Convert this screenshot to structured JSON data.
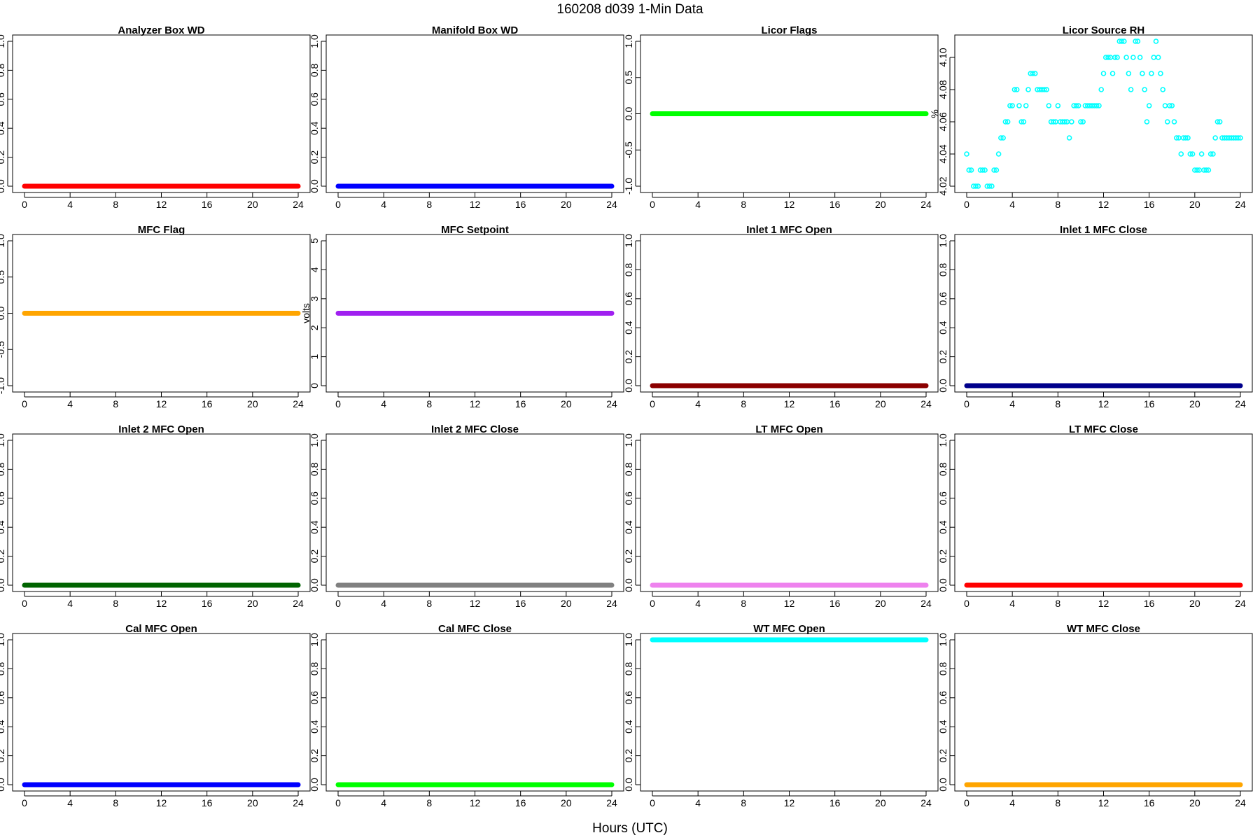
{
  "page": {
    "title": "160208   d039   1-Min Data",
    "xlabel": "Hours (UTC)"
  },
  "chart_data": [
    {
      "type": "scatter",
      "title": "Analyzer Box WD",
      "ylabel": "",
      "xlim": [
        0,
        24
      ],
      "ylim": [
        0,
        1
      ],
      "xticks": [
        0,
        4,
        8,
        12,
        16,
        20,
        24
      ],
      "yticks": [
        "0.0",
        "0.2",
        "0.4",
        "0.6",
        "0.8",
        "1.0"
      ],
      "color": "#ff0000",
      "style": "constant",
      "value": 0
    },
    {
      "type": "scatter",
      "title": "Manifold Box WD",
      "ylabel": "",
      "xlim": [
        0,
        24
      ],
      "ylim": [
        0,
        1
      ],
      "xticks": [
        0,
        4,
        8,
        12,
        16,
        20,
        24
      ],
      "yticks": [
        "0.0",
        "0.2",
        "0.4",
        "0.6",
        "0.8",
        "1.0"
      ],
      "color": "#0000ff",
      "style": "constant",
      "value": 0
    },
    {
      "type": "scatter",
      "title": "Licor Flags",
      "ylabel": "",
      "xlim": [
        0,
        24
      ],
      "ylim": [
        -1,
        1
      ],
      "xticks": [
        0,
        4,
        8,
        12,
        16,
        20,
        24
      ],
      "yticks": [
        "-1.0",
        "-0.5",
        "0.0",
        "0.5",
        "1.0"
      ],
      "color": "#00ff00",
      "style": "constant",
      "value": 0
    },
    {
      "type": "scatter",
      "title": "Licor Source RH",
      "ylabel": "%",
      "xlim": [
        0,
        24
      ],
      "ylim": [
        4.02,
        4.11
      ],
      "xticks": [
        0,
        4,
        8,
        12,
        16,
        20,
        24
      ],
      "yticks": [
        "4.02",
        "4.04",
        "4.06",
        "4.08",
        "4.10"
      ],
      "color": "#00ffff",
      "style": "points",
      "points": [
        [
          0.0,
          4.04
        ],
        [
          0.2,
          4.03
        ],
        [
          0.4,
          4.03
        ],
        [
          0.6,
          4.02
        ],
        [
          0.8,
          4.02
        ],
        [
          1.0,
          4.02
        ],
        [
          1.2,
          4.03
        ],
        [
          1.4,
          4.03
        ],
        [
          1.6,
          4.03
        ],
        [
          1.8,
          4.02
        ],
        [
          2.0,
          4.02
        ],
        [
          2.2,
          4.02
        ],
        [
          2.4,
          4.03
        ],
        [
          2.6,
          4.03
        ],
        [
          2.8,
          4.04
        ],
        [
          3.0,
          4.05
        ],
        [
          3.2,
          4.05
        ],
        [
          3.4,
          4.06
        ],
        [
          3.6,
          4.06
        ],
        [
          3.8,
          4.07
        ],
        [
          4.0,
          4.07
        ],
        [
          4.2,
          4.08
        ],
        [
          4.4,
          4.08
        ],
        [
          4.6,
          4.07
        ],
        [
          4.8,
          4.06
        ],
        [
          5.0,
          4.06
        ],
        [
          5.2,
          4.07
        ],
        [
          5.4,
          4.08
        ],
        [
          5.6,
          4.09
        ],
        [
          5.8,
          4.09
        ],
        [
          6.0,
          4.09
        ],
        [
          6.2,
          4.08
        ],
        [
          6.4,
          4.08
        ],
        [
          6.6,
          4.08
        ],
        [
          6.8,
          4.08
        ],
        [
          7.0,
          4.08
        ],
        [
          7.2,
          4.07
        ],
        [
          7.4,
          4.06
        ],
        [
          7.6,
          4.06
        ],
        [
          7.8,
          4.06
        ],
        [
          8.0,
          4.07
        ],
        [
          8.2,
          4.06
        ],
        [
          8.4,
          4.06
        ],
        [
          8.6,
          4.06
        ],
        [
          8.8,
          4.06
        ],
        [
          9.0,
          4.05
        ],
        [
          9.2,
          4.06
        ],
        [
          9.4,
          4.07
        ],
        [
          9.6,
          4.07
        ],
        [
          9.8,
          4.07
        ],
        [
          10.0,
          4.06
        ],
        [
          10.2,
          4.06
        ],
        [
          10.4,
          4.07
        ],
        [
          10.6,
          4.07
        ],
        [
          10.8,
          4.07
        ],
        [
          11.0,
          4.07
        ],
        [
          11.2,
          4.07
        ],
        [
          11.4,
          4.07
        ],
        [
          11.6,
          4.07
        ],
        [
          11.8,
          4.08
        ],
        [
          12.0,
          4.09
        ],
        [
          12.2,
          4.1
        ],
        [
          12.4,
          4.1
        ],
        [
          12.6,
          4.1
        ],
        [
          12.8,
          4.09
        ],
        [
          13.0,
          4.1
        ],
        [
          13.2,
          4.1
        ],
        [
          13.4,
          4.11
        ],
        [
          13.6,
          4.11
        ],
        [
          13.8,
          4.11
        ],
        [
          14.0,
          4.1
        ],
        [
          14.2,
          4.09
        ],
        [
          14.4,
          4.08
        ],
        [
          14.6,
          4.1
        ],
        [
          14.8,
          4.11
        ],
        [
          15.0,
          4.11
        ],
        [
          15.2,
          4.1
        ],
        [
          15.4,
          4.09
        ],
        [
          15.6,
          4.08
        ],
        [
          15.8,
          4.06
        ],
        [
          16.0,
          4.07
        ],
        [
          16.2,
          4.09
        ],
        [
          16.4,
          4.1
        ],
        [
          16.6,
          4.11
        ],
        [
          16.8,
          4.1
        ],
        [
          17.0,
          4.09
        ],
        [
          17.2,
          4.08
        ],
        [
          17.4,
          4.07
        ],
        [
          17.6,
          4.06
        ],
        [
          17.8,
          4.07
        ],
        [
          18.0,
          4.07
        ],
        [
          18.2,
          4.06
        ],
        [
          18.4,
          4.05
        ],
        [
          18.6,
          4.05
        ],
        [
          18.8,
          4.04
        ],
        [
          19.0,
          4.05
        ],
        [
          19.2,
          4.05
        ],
        [
          19.4,
          4.05
        ],
        [
          19.6,
          4.04
        ],
        [
          19.8,
          4.04
        ],
        [
          20.0,
          4.03
        ],
        [
          20.2,
          4.03
        ],
        [
          20.4,
          4.03
        ],
        [
          20.6,
          4.04
        ],
        [
          20.8,
          4.03
        ],
        [
          21.0,
          4.03
        ],
        [
          21.2,
          4.03
        ],
        [
          21.4,
          4.04
        ],
        [
          21.6,
          4.04
        ],
        [
          21.8,
          4.05
        ],
        [
          22.0,
          4.06
        ],
        [
          22.2,
          4.06
        ],
        [
          22.4,
          4.05
        ],
        [
          22.6,
          4.05
        ],
        [
          22.8,
          4.05
        ],
        [
          23.0,
          4.05
        ],
        [
          23.2,
          4.05
        ],
        [
          23.4,
          4.05
        ],
        [
          23.6,
          4.05
        ],
        [
          23.8,
          4.05
        ],
        [
          24.0,
          4.05
        ]
      ]
    },
    {
      "type": "scatter",
      "title": "MFC Flag",
      "ylabel": "",
      "xlim": [
        0,
        24
      ],
      "ylim": [
        -1,
        1
      ],
      "xticks": [
        0,
        4,
        8,
        12,
        16,
        20,
        24
      ],
      "yticks": [
        "-1.0",
        "-0.5",
        "0.0",
        "0.5",
        "1.0"
      ],
      "color": "#ffa500",
      "style": "constant",
      "value": 0
    },
    {
      "type": "scatter",
      "title": "MFC Setpoint",
      "ylabel": "volts",
      "xlim": [
        0,
        24
      ],
      "ylim": [
        0,
        5
      ],
      "xticks": [
        0,
        4,
        8,
        12,
        16,
        20,
        24
      ],
      "yticks": [
        "0",
        "1",
        "2",
        "3",
        "4",
        "5"
      ],
      "color": "#a020f0",
      "style": "constant",
      "value": 2.5
    },
    {
      "type": "scatter",
      "title": "Inlet 1 MFC Open",
      "ylabel": "",
      "xlim": [
        0,
        24
      ],
      "ylim": [
        0,
        1
      ],
      "xticks": [
        0,
        4,
        8,
        12,
        16,
        20,
        24
      ],
      "yticks": [
        "0.0",
        "0.2",
        "0.4",
        "0.6",
        "0.8",
        "1.0"
      ],
      "color": "#8b0000",
      "style": "constant",
      "value": 0
    },
    {
      "type": "scatter",
      "title": "Inlet 1 MFC Close",
      "ylabel": "",
      "xlim": [
        0,
        24
      ],
      "ylim": [
        0,
        1
      ],
      "xticks": [
        0,
        4,
        8,
        12,
        16,
        20,
        24
      ],
      "yticks": [
        "0.0",
        "0.2",
        "0.4",
        "0.6",
        "0.8",
        "1.0"
      ],
      "color": "#00008b",
      "style": "constant",
      "value": 0
    },
    {
      "type": "scatter",
      "title": "Inlet 2 MFC Open",
      "ylabel": "",
      "xlim": [
        0,
        24
      ],
      "ylim": [
        0,
        1
      ],
      "xticks": [
        0,
        4,
        8,
        12,
        16,
        20,
        24
      ],
      "yticks": [
        "0.0",
        "0.2",
        "0.4",
        "0.6",
        "0.8",
        "1.0"
      ],
      "color": "#006400",
      "style": "constant",
      "value": 0
    },
    {
      "type": "scatter",
      "title": "Inlet 2 MFC Close",
      "ylabel": "",
      "xlim": [
        0,
        24
      ],
      "ylim": [
        0,
        1
      ],
      "xticks": [
        0,
        4,
        8,
        12,
        16,
        20,
        24
      ],
      "yticks": [
        "0.0",
        "0.2",
        "0.4",
        "0.6",
        "0.8",
        "1.0"
      ],
      "color": "#808080",
      "style": "constant",
      "value": 0
    },
    {
      "type": "scatter",
      "title": "LT MFC Open",
      "ylabel": "",
      "xlim": [
        0,
        24
      ],
      "ylim": [
        0,
        1
      ],
      "xticks": [
        0,
        4,
        8,
        12,
        16,
        20,
        24
      ],
      "yticks": [
        "0.0",
        "0.2",
        "0.4",
        "0.6",
        "0.8",
        "1.0"
      ],
      "color": "#ee82ee",
      "style": "constant",
      "value": 0
    },
    {
      "type": "scatter",
      "title": "LT MFC Close",
      "ylabel": "",
      "xlim": [
        0,
        24
      ],
      "ylim": [
        0,
        1
      ],
      "xticks": [
        0,
        4,
        8,
        12,
        16,
        20,
        24
      ],
      "yticks": [
        "0.0",
        "0.2",
        "0.4",
        "0.6",
        "0.8",
        "1.0"
      ],
      "color": "#ff0000",
      "style": "constant",
      "value": 0
    },
    {
      "type": "scatter",
      "title": "Cal MFC Open",
      "ylabel": "",
      "xlim": [
        0,
        24
      ],
      "ylim": [
        0,
        1
      ],
      "xticks": [
        0,
        4,
        8,
        12,
        16,
        20,
        24
      ],
      "yticks": [
        "0.0",
        "0.2",
        "0.4",
        "0.6",
        "0.8",
        "1.0"
      ],
      "color": "#0000ff",
      "style": "constant",
      "value": 0
    },
    {
      "type": "scatter",
      "title": "Cal MFC Close",
      "ylabel": "",
      "xlim": [
        0,
        24
      ],
      "ylim": [
        0,
        1
      ],
      "xticks": [
        0,
        4,
        8,
        12,
        16,
        20,
        24
      ],
      "yticks": [
        "0.0",
        "0.2",
        "0.4",
        "0.6",
        "0.8",
        "1.0"
      ],
      "color": "#00ff00",
      "style": "constant",
      "value": 0
    },
    {
      "type": "scatter",
      "title": "WT MFC Open",
      "ylabel": "",
      "xlim": [
        0,
        24
      ],
      "ylim": [
        0,
        1
      ],
      "xticks": [
        0,
        4,
        8,
        12,
        16,
        20,
        24
      ],
      "yticks": [
        "0.0",
        "0.2",
        "0.4",
        "0.6",
        "0.8",
        "1.0"
      ],
      "color": "#00ffff",
      "style": "constant",
      "value": 1
    },
    {
      "type": "scatter",
      "title": "WT MFC Close",
      "ylabel": "",
      "xlim": [
        0,
        24
      ],
      "ylim": [
        0,
        1
      ],
      "xticks": [
        0,
        4,
        8,
        12,
        16,
        20,
        24
      ],
      "yticks": [
        "0.0",
        "0.2",
        "0.4",
        "0.6",
        "0.8",
        "1.0"
      ],
      "color": "#ffa500",
      "style": "constant",
      "value": 0
    }
  ]
}
